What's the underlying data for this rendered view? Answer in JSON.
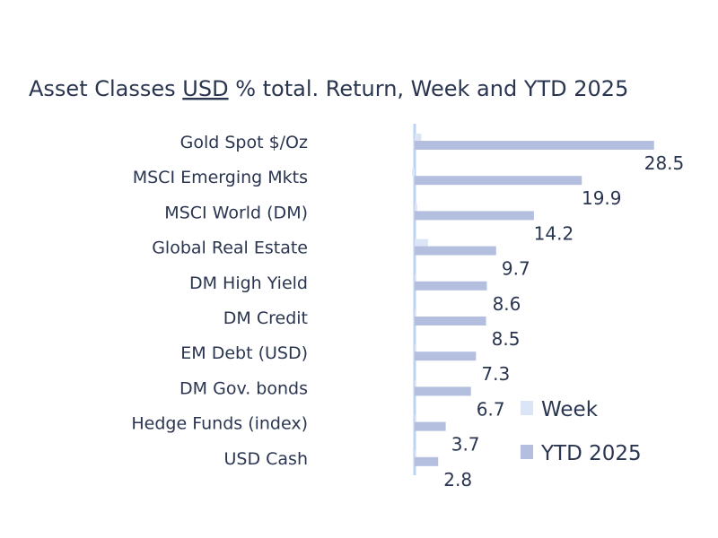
{
  "chart_data": {
    "type": "bar",
    "orientation": "horizontal",
    "title": "Asset Classes USD % total. Return, Week and YTD 2025",
    "title_parts": [
      "Asset Classes ",
      "USD",
      " % total. Return, Week and YTD 2025"
    ],
    "categories": [
      "Gold Spot   $/Oz",
      "MSCI Emerging Mkts",
      "MSCI World (DM)",
      "Global Real Estate",
      "DM High Yield",
      "DM Credit",
      "EM Debt (USD)",
      "DM Gov. bonds",
      "Hedge Funds (index)",
      "USD Cash"
    ],
    "series": [
      {
        "name": "Week",
        "color": "#dce5f6",
        "values": [
          0.8,
          -0.3,
          0.3,
          1.6,
          0.1,
          0.1,
          0.1,
          0.1,
          0.1,
          0.05
        ]
      },
      {
        "name": "YTD 2025",
        "color": "#b4bfe0",
        "values": [
          28.5,
          19.9,
          14.2,
          9.7,
          8.6,
          8.5,
          7.3,
          6.7,
          3.7,
          2.8
        ]
      }
    ],
    "value_labels": [
      "28.5",
      "19.9",
      "14.2",
      "9.7",
      "8.6",
      "8.5",
      "7.3",
      "6.7",
      "3.7",
      "2.8"
    ],
    "xlim": [
      -0.5,
      29
    ],
    "grid": false,
    "legend": "bottom-right",
    "axis_color": "#bcd3f2"
  }
}
